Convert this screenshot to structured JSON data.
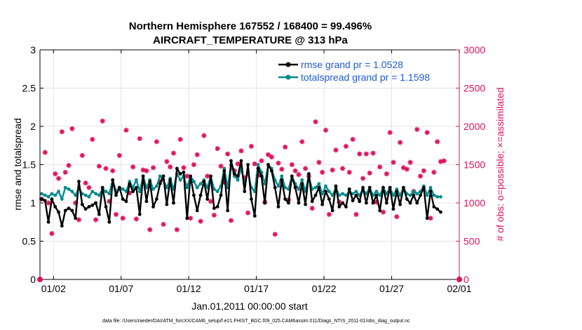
{
  "chart_data": {
    "type": "line",
    "title_line1": "Northern Hemisphere 167552 / 168400 = 99.496%",
    "title_line2": "AIRCRAFT_TEMPERATURE @ 313 hPa",
    "xlabel": "Jan.01,2011 00:00:00 start",
    "ylabel_left": "rmse and totalspread",
    "ylabel_right": "# of obs: o=possible; ×=assimilated",
    "footer": "data file: /Users/raeder/DAI/ATM_forcXX/CAM6_setup/f.e21.FHIST_BGC.f09_025.CAM6assim.011/Diags_NTrS_2011-01/obs_diag_output.nc",
    "xlim": [
      0,
      31
    ],
    "ylim_left": [
      0,
      3
    ],
    "ylim_right": [
      0,
      3000
    ],
    "x_ticks": [
      1,
      6,
      11,
      16,
      21,
      26,
      31
    ],
    "x_tick_labels": [
      "01/02",
      "01/07",
      "01/12",
      "01/17",
      "01/22",
      "01/27",
      "02/01"
    ],
    "y_left_ticks": [
      0,
      0.5,
      1,
      1.5,
      2,
      2.5,
      3
    ],
    "y_left_tick_labels": [
      "0",
      "0.5",
      "1",
      "1.5",
      "2",
      "2.5",
      "3"
    ],
    "y_right_ticks": [
      0,
      500,
      1000,
      1500,
      2000,
      2500,
      3000
    ],
    "y_right_tick_labels": [
      "0",
      "500",
      "1000",
      "1500",
      "2000",
      "2500",
      "3000"
    ],
    "x_start": 0.125,
    "x_step": 0.25,
    "series": [
      {
        "name": "rmse grand pr = 1.0528",
        "color": "#000000",
        "values": [
          1.05,
          1.03,
          0.75,
          1.05,
          0.95,
          0.88,
          0.7,
          0.9,
          0.93,
          0.9,
          0.8,
          1.28,
          0.98,
          0.92,
          0.95,
          0.97,
          1.0,
          0.85,
          1.2,
          0.95,
          0.75,
          1.3,
          1.1,
          1.2,
          1.05,
          1.02,
          1.25,
          1.15,
          1.2,
          0.85,
          1.35,
          1.02,
          1.28,
          0.95,
          1.05,
          1.25,
          1.35,
          0.98,
          1.3,
          1.0,
          1.45,
          1.38,
          1.4,
          0.8,
          1.35,
          1.1,
          0.9,
          1.1,
          1.28,
          1.05,
          1.35,
          0.93,
          0.95,
          1.1,
          1.42,
          0.9,
          1.55,
          1.38,
          1.35,
          1.55,
          1.15,
          1.5,
          1.05,
          0.83,
          1.45,
          1.35,
          1.0,
          1.5,
          1.42,
          1.2,
          0.95,
          1.3,
          1.05,
          1.0,
          1.35,
          1.2,
          1.0,
          1.25,
          0.98,
          1.38,
          1.02,
          1.1,
          1.2,
          0.98,
          1.15,
          1.05,
          0.9,
          1.22,
          0.95,
          1.0,
          0.95,
          1.18,
          1.03,
          1.1,
          1.02,
          1.2,
          1.0,
          1.2,
          1.0,
          1.1,
          0.9,
          1.2,
          1.0,
          1.2,
          0.92,
          1.15,
          0.98,
          1.2,
          1.05,
          1.0,
          1.1,
          1.0,
          1.1,
          1.2,
          0.8,
          1.15,
          0.95,
          0.92,
          0.88
        ],
        "label": "rmse grand pr = 1.0528"
      },
      {
        "name": "totalspread grand pr = 1.1598",
        "color": "#008b8b",
        "values": [
          1.12,
          1.1,
          1.08,
          1.12,
          1.1,
          1.15,
          1.05,
          1.2,
          1.18,
          1.15,
          1.1,
          1.2,
          1.12,
          1.1,
          1.08,
          1.15,
          1.12,
          1.1,
          1.18,
          1.15,
          1.12,
          1.3,
          1.15,
          1.2,
          1.18,
          1.15,
          1.28,
          1.2,
          1.3,
          1.15,
          1.35,
          1.2,
          1.3,
          1.18,
          1.22,
          1.35,
          1.3,
          1.2,
          1.32,
          1.18,
          1.38,
          1.3,
          1.35,
          1.2,
          1.35,
          1.28,
          1.2,
          1.25,
          1.3,
          1.2,
          1.35,
          1.18,
          1.15,
          1.22,
          1.45,
          1.2,
          1.5,
          1.35,
          1.3,
          1.45,
          1.25,
          1.4,
          1.2,
          1.15,
          1.5,
          1.4,
          1.25,
          1.5,
          1.45,
          1.3,
          1.22,
          1.35,
          1.2,
          1.18,
          1.35,
          1.25,
          1.18,
          1.3,
          1.15,
          1.35,
          1.18,
          1.2,
          1.25,
          1.12,
          1.22,
          1.15,
          1.1,
          1.2,
          1.1,
          1.12,
          1.1,
          1.15,
          1.12,
          1.15,
          1.1,
          1.18,
          1.12,
          1.2,
          1.1,
          1.15,
          1.1,
          1.2,
          1.12,
          1.2,
          1.1,
          1.18,
          1.1,
          1.2,
          1.12,
          1.1,
          1.15,
          1.12,
          1.15,
          1.22,
          1.1,
          1.2,
          1.1,
          1.08,
          1.08
        ],
        "label": "totalspread grand pr = 1.1598"
      }
    ],
    "obs_count": {
      "name": "# of obs",
      "color": "#e0115f",
      "values": [
        1050,
        1660,
        1000,
        600,
        1380,
        1320,
        1930,
        1400,
        1490,
        1970,
        1000,
        780,
        1620,
        1260,
        1200,
        1830,
        780,
        1480,
        2070,
        1450,
        1020,
        1420,
        850,
        1620,
        800,
        1950,
        1130,
        1470,
        790,
        1840,
        1430,
        1420,
        650,
        1460,
        1800,
        1280,
        720,
        1540,
        1470,
        1650,
        650,
        1830,
        1460,
        1350,
        800,
        1500,
        1630,
        760,
        1880,
        1350,
        1020,
        840,
        1710,
        1480,
        1270,
        1640,
        770,
        1420,
        1510,
        1680,
        1330,
        870,
        1740,
        1510,
        1360,
        1550,
        1010,
        1630,
        1600,
        590,
        1520,
        1440,
        1730,
        1040,
        1500,
        1420,
        1370,
        1800,
        1450,
        1350,
        930,
        2060,
        1530,
        1400,
        1950,
        850,
        1430,
        1690,
        1010,
        1450,
        1740,
        1400,
        1830,
        850,
        1640,
        1320,
        1640,
        1390,
        1650,
        1010,
        1470,
        880,
        1380,
        1920,
        1530,
        820,
        1790,
        1460,
        1440,
        1530,
        1150,
        1960,
        1350,
        1420,
        1920,
        800,
        1400,
        1800,
        1540,
        1550
      ],
      "possible_markers_x": [
        0,
        31
      ],
      "possible_markers_value": 0
    }
  }
}
